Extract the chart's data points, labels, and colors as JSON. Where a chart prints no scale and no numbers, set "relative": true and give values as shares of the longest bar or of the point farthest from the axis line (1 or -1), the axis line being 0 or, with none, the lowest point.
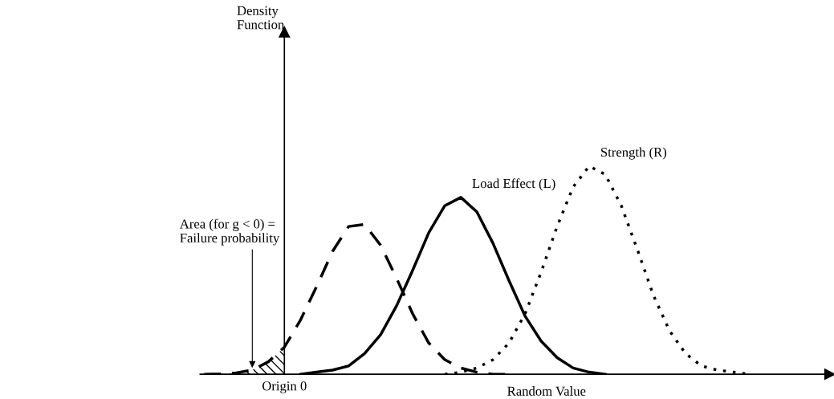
{
  "chart_data": {
    "type": "line",
    "relative": true,
    "xlabel": "Random Value",
    "categories": [
      null,
      null,
      null,
      null,
      null,
      null,
      null,
      null,
      null,
      null,
      null,
      null,
      null,
      null,
      null,
      null,
      null,
      null,
      null,
      null,
      null,
      null,
      null,
      null,
      null,
      null,
      null,
      null,
      null,
      null,
      null,
      null,
      null,
      null,
      null
    ],
    "annotations": [
      "Density\nFunction",
      "Origin 0",
      "Area (for g < 0) =\nFailure probability"
    ],
    "series": [
      {
        "color": "#000000",
        "line_style": "dashed",
        "values": [
          0,
          0.002,
          0.007,
          0.02,
          0.06,
          0.13,
          0.26,
          0.42,
          0.59,
          0.71,
          0.72,
          0.62,
          0.46,
          0.29,
          0.15,
          0.07,
          0.03,
          0.01,
          0.0,
          0,
          null,
          null,
          null,
          null,
          null,
          null,
          null,
          null,
          null,
          null,
          null,
          null,
          null,
          null,
          null
        ]
      },
      {
        "name": "Load Effect (L)",
        "color": "#000000",
        "line_style": "solid",
        "values": [
          null,
          null,
          null,
          null,
          null,
          null,
          0.0,
          0.01,
          0.02,
          0.04,
          0.1,
          0.19,
          0.33,
          0.5,
          0.68,
          0.81,
          0.85,
          0.78,
          0.63,
          0.45,
          0.28,
          0.16,
          0.08,
          0.03,
          0.01,
          0.0,
          null,
          null,
          null,
          null,
          null,
          null,
          null,
          null,
          null
        ]
      },
      {
        "name": "Strength (R)",
        "color": "#000000",
        "line_style": "dotted",
        "values": [
          null,
          null,
          null,
          null,
          null,
          null,
          null,
          null,
          null,
          null,
          null,
          null,
          null,
          null,
          null,
          0.0,
          0.01,
          0.03,
          0.07,
          0.15,
          0.29,
          0.49,
          0.71,
          0.9,
          1.0,
          0.96,
          0.81,
          0.6,
          0.38,
          0.21,
          0.1,
          0.04,
          0.02,
          0.01,
          0.0
        ]
      }
    ],
    "tick_labels": false
  }
}
